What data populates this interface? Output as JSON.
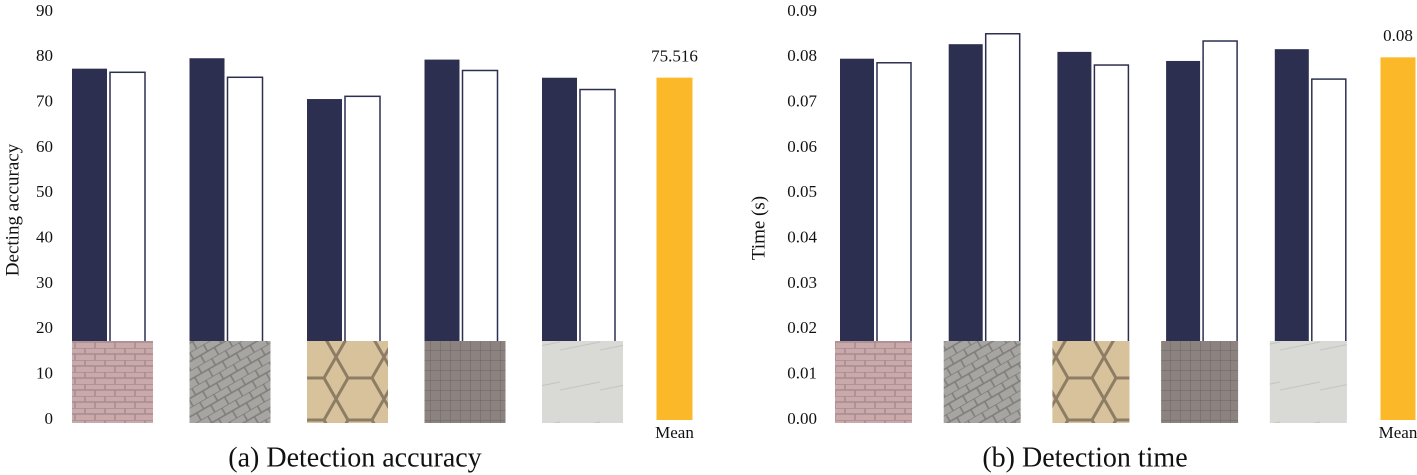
{
  "chart_data": [
    {
      "type": "bar",
      "title": "(a) Detection accuracy",
      "ylabel": "Decting accuracy",
      "categories": [
        null,
        null,
        null,
        null,
        null,
        "Mean"
      ],
      "series": [
        {
          "color": "#2d2f50",
          "values": [
            77.5,
            79.8,
            70.8,
            79.5,
            75.5,
            null
          ]
        },
        {
          "color": "#ffffff",
          "values": [
            76.7,
            75.6,
            71.4,
            77.1,
            72.9,
            null
          ]
        },
        {
          "color": "#fbb829",
          "values": [
            null,
            null,
            null,
            null,
            null,
            75.516
          ]
        }
      ],
      "ylim": [
        0,
        90
      ],
      "yticks": [
        0,
        10,
        20,
        30,
        40,
        50,
        60,
        70,
        80,
        90
      ]
    },
    {
      "type": "bar",
      "title": "(b) Detection time",
      "ylabel": "Time (s)",
      "categories": [
        null,
        null,
        null,
        null,
        null,
        "Mean"
      ],
      "series": [
        {
          "color": "#2d2f50",
          "values": [
            0.0797,
            0.0829,
            0.0812,
            0.0792,
            0.0818,
            null
          ]
        },
        {
          "color": "#ffffff",
          "values": [
            0.0788,
            0.0852,
            0.0783,
            0.0836,
            0.0752,
            null
          ]
        },
        {
          "color": "#fbb829",
          "values": [
            null,
            null,
            null,
            null,
            null,
            0.08
          ]
        }
      ],
      "ylim": [
        0,
        0.09
      ],
      "yticks": [
        {
          "value": 0,
          "label": "0.00"
        },
        0.01,
        0.02,
        0.03,
        0.04,
        0.05,
        0.06,
        0.07,
        0.08,
        0.09
      ]
    }
  ]
}
